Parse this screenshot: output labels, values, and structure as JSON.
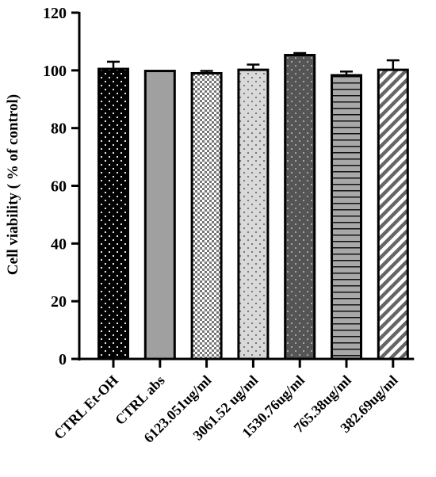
{
  "chart_data": {
    "type": "bar",
    "title": "",
    "xlabel": "",
    "ylabel": "Cell viability ( % of control)",
    "ylim": [
      0,
      120
    ],
    "yticks": [
      0,
      20,
      40,
      60,
      80,
      100,
      120
    ],
    "grid": false,
    "legend": "none",
    "categories": [
      "CTRL Et-OH",
      "CTRL abs",
      "6123.051ug/ml",
      "3061.52 ug/ml",
      "1530.76ug/ml",
      "765.38ug/ml",
      "382.69ug/ml"
    ],
    "values": [
      100.5,
      99.8,
      99.0,
      100.2,
      105.3,
      98.3,
      100.2
    ],
    "errors": [
      2.5,
      0,
      0.8,
      1.8,
      0.7,
      1.3,
      3.3
    ],
    "patterns": [
      "dots-on-black",
      "solid-gray",
      "checker",
      "dots-on-light",
      "dots-on-dark",
      "horizontal-lines",
      "diagonal-stripes"
    ],
    "colors": {
      "black": "#000000",
      "gray": "#a0a0a0",
      "light_gray": "#d9d9d9",
      "dark_gray": "#555555"
    }
  }
}
